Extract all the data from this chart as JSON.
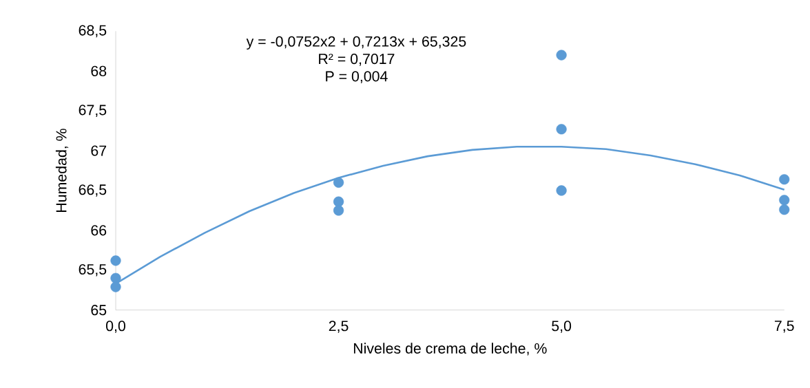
{
  "chart_data": {
    "type": "scatter",
    "xlabel": "Niveles de crema de leche, %",
    "ylabel": "Humedad, %",
    "annotations": [
      "y = -0,0752x2 + 0,7213x + 65,325",
      "R² = 0,7017",
      "P = 0,004"
    ],
    "xlim": [
      0,
      7.5
    ],
    "ylim": [
      65,
      68.5
    ],
    "xticks": [
      {
        "value": 0,
        "label": "0,0"
      },
      {
        "value": 2.5,
        "label": "2,5"
      },
      {
        "value": 5,
        "label": "5,0"
      },
      {
        "value": 7.5,
        "label": "7,5"
      }
    ],
    "yticks": [
      65,
      {
        "value": 65.5,
        "label": "65,5"
      },
      66,
      {
        "value": 66.5,
        "label": "66,5"
      },
      67,
      {
        "value": 67.5,
        "label": "67,5"
      },
      68,
      {
        "value": 68.5,
        "label": "68,5"
      }
    ],
    "series": [
      {
        "marker": "circle",
        "color": "#5b9bd5",
        "x": [
          0,
          0,
          0,
          2.5,
          2.5,
          2.5,
          5,
          5,
          5,
          7.5,
          7.5,
          7.5
        ],
        "values": [
          65.62,
          65.4,
          65.29,
          66.6,
          66.36,
          66.25,
          68.2,
          67.27,
          66.5,
          66.64,
          66.38,
          66.26
        ]
      },
      {
        "type": "line",
        "marker": "none",
        "color": "#5b9bd5",
        "x": [
          0,
          0.5,
          1,
          1.5,
          2,
          2.5,
          3,
          3.5,
          4,
          4.5,
          5,
          5.5,
          6,
          6.5,
          7,
          7.5
        ],
        "values": [
          65.33,
          65.67,
          65.97,
          66.24,
          66.47,
          66.66,
          66.81,
          66.93,
          67.01,
          67.05,
          67.05,
          67.02,
          66.94,
          66.83,
          66.69,
          66.51
        ]
      }
    ]
  }
}
